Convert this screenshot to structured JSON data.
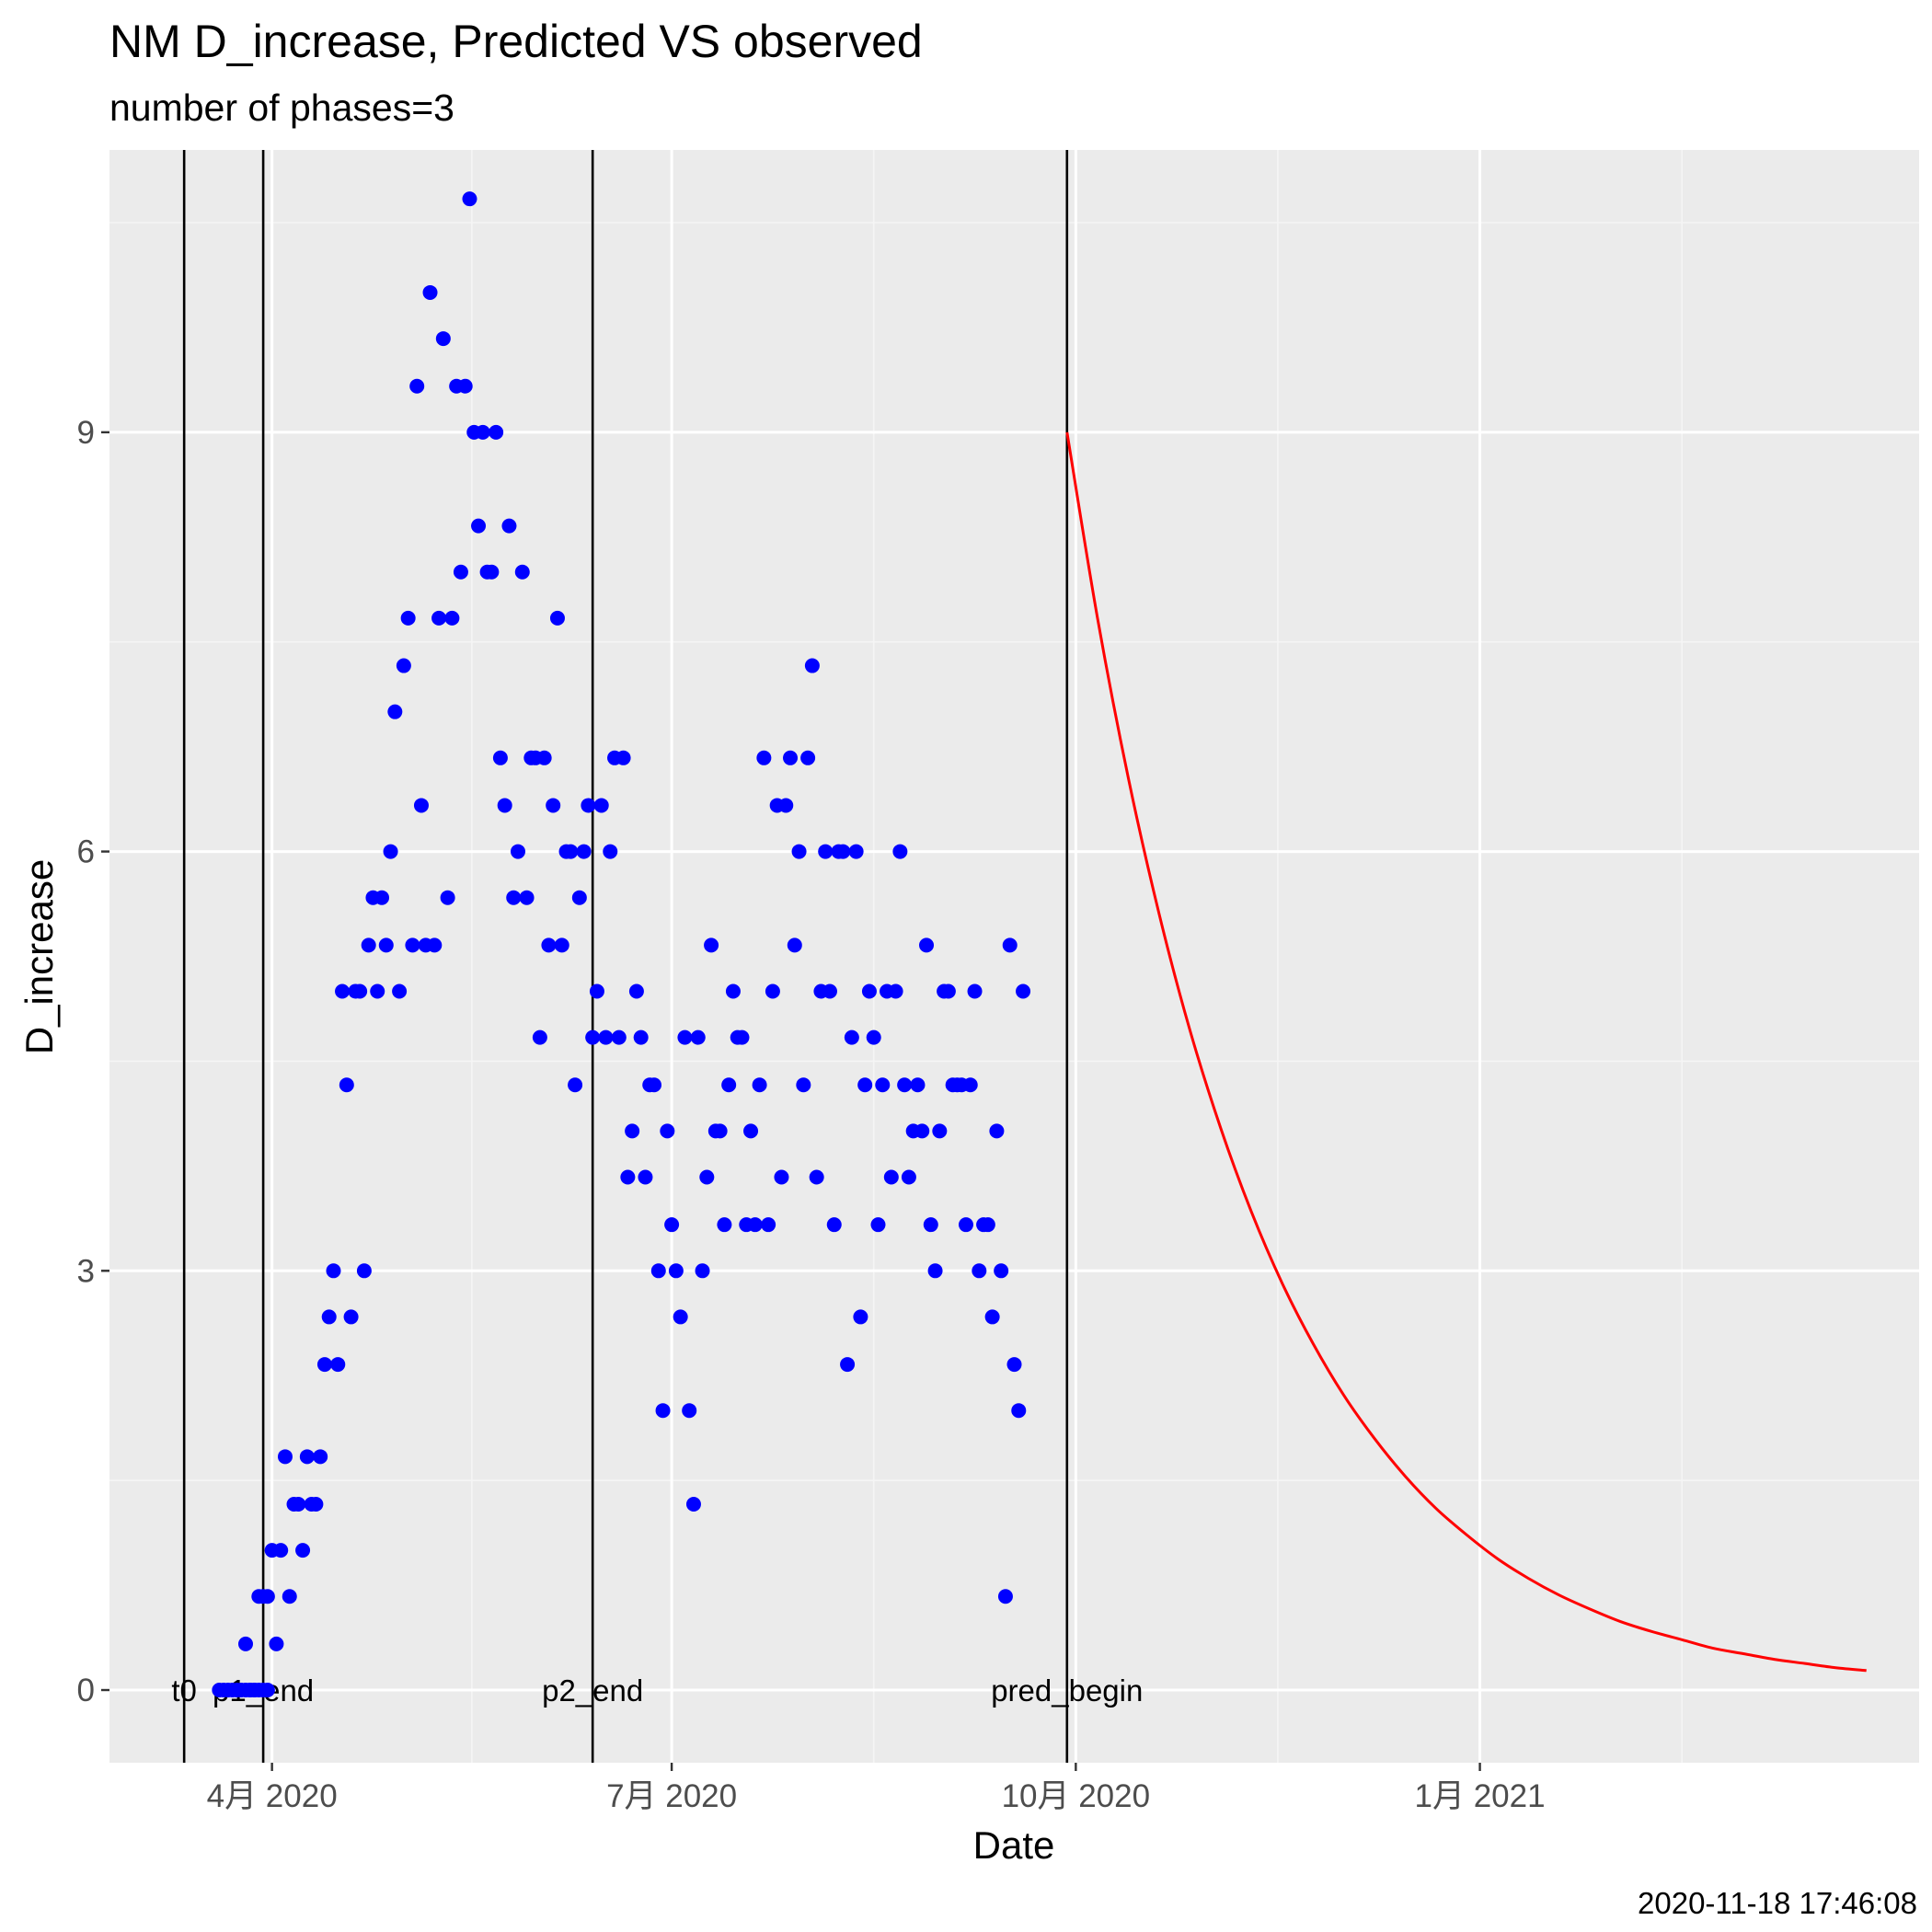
{
  "chart_data": {
    "type": "scatter",
    "title": "NM D_increase, Predicted VS observed",
    "subtitle": "number of phases=3",
    "caption": "2020-11-18 17:46:08",
    "xlabel": "Date",
    "ylabel": "D_increase",
    "x_ticks": [
      {
        "date": "2020-04-01",
        "label": "4月 2020"
      },
      {
        "date": "2020-07-01",
        "label": "7月 2020"
      },
      {
        "date": "2020-10-01",
        "label": "10月 2020"
      },
      {
        "date": "2021-01-01",
        "label": "1月 2021"
      }
    ],
    "y_ticks": [
      0,
      3,
      6,
      9
    ],
    "xlim": [
      "2020-02-24",
      "2021-04-11"
    ],
    "ylim": [
      -0.52,
      11.02
    ],
    "grid": true,
    "vlines": [
      {
        "date": "2020-03-12",
        "label": "t0"
      },
      {
        "date": "2020-03-30",
        "label": "p1_end"
      },
      {
        "date": "2020-06-13",
        "label": "p2_end"
      },
      {
        "date": "2020-09-29",
        "label": "pred_begin"
      }
    ],
    "series": [
      {
        "type": "scatter",
        "color": "#0000ff",
        "points": [
          [
            "2020-03-20",
            0
          ],
          [
            "2020-03-21",
            0
          ],
          [
            "2020-03-22",
            0
          ],
          [
            "2020-03-23",
            0
          ],
          [
            "2020-03-24",
            0
          ],
          [
            "2020-03-25",
            0
          ],
          [
            "2020-03-26",
            0
          ],
          [
            "2020-03-27",
            0
          ],
          [
            "2020-03-28",
            0
          ],
          [
            "2020-03-29",
            0
          ],
          [
            "2020-03-30",
            0
          ],
          [
            "2020-03-31",
            0
          ],
          [
            "2020-03-26",
            0.33
          ],
          [
            "2020-03-27",
            0
          ],
          [
            "2020-03-28",
            0
          ],
          [
            "2020-03-29",
            0.67
          ],
          [
            "2020-03-30",
            0.67
          ],
          [
            "2020-03-31",
            0.67
          ],
          [
            "2020-04-01",
            1
          ],
          [
            "2020-04-02",
            0.33
          ],
          [
            "2020-04-03",
            1
          ],
          [
            "2020-04-04",
            1.67
          ],
          [
            "2020-04-05",
            0.67
          ],
          [
            "2020-04-06",
            1.33
          ],
          [
            "2020-04-07",
            1.33
          ],
          [
            "2020-04-08",
            1
          ],
          [
            "2020-04-09",
            1.67
          ],
          [
            "2020-04-10",
            1.33
          ],
          [
            "2020-04-11",
            1.33
          ],
          [
            "2020-04-12",
            1.67
          ],
          [
            "2020-04-13",
            2.33
          ],
          [
            "2020-04-14",
            2.67
          ],
          [
            "2020-04-15",
            3
          ],
          [
            "2020-04-16",
            2.33
          ],
          [
            "2020-04-17",
            5
          ],
          [
            "2020-04-18",
            4.33
          ],
          [
            "2020-04-19",
            2.67
          ],
          [
            "2020-04-20",
            5
          ],
          [
            "2020-04-21",
            5
          ],
          [
            "2020-04-22",
            3
          ],
          [
            "2020-04-23",
            5.33
          ],
          [
            "2020-04-24",
            5.67
          ],
          [
            "2020-04-25",
            5
          ],
          [
            "2020-04-26",
            5.67
          ],
          [
            "2020-04-27",
            5.33
          ],
          [
            "2020-04-28",
            6
          ],
          [
            "2020-04-29",
            7
          ],
          [
            "2020-04-30",
            5
          ],
          [
            "2020-05-01",
            7.33
          ],
          [
            "2020-05-02",
            7.67
          ],
          [
            "2020-05-03",
            5.33
          ],
          [
            "2020-05-04",
            9.33
          ],
          [
            "2020-05-05",
            6.33
          ],
          [
            "2020-05-06",
            5.33
          ],
          [
            "2020-05-07",
            10
          ],
          [
            "2020-05-08",
            5.33
          ],
          [
            "2020-05-09",
            7.67
          ],
          [
            "2020-05-10",
            9.67
          ],
          [
            "2020-05-11",
            5.67
          ],
          [
            "2020-05-12",
            7.67
          ],
          [
            "2020-05-13",
            9.33
          ],
          [
            "2020-05-14",
            8
          ],
          [
            "2020-05-15",
            9.33
          ],
          [
            "2020-05-16",
            10.67
          ],
          [
            "2020-05-17",
            9
          ],
          [
            "2020-05-18",
            8.33
          ],
          [
            "2020-05-19",
            9
          ],
          [
            "2020-05-20",
            8
          ],
          [
            "2020-05-21",
            8
          ],
          [
            "2020-05-22",
            9
          ],
          [
            "2020-05-23",
            6.67
          ],
          [
            "2020-05-24",
            6.33
          ],
          [
            "2020-05-25",
            8.33
          ],
          [
            "2020-05-26",
            5.67
          ],
          [
            "2020-05-27",
            6
          ],
          [
            "2020-05-28",
            8
          ],
          [
            "2020-05-29",
            5.67
          ],
          [
            "2020-05-30",
            6.67
          ],
          [
            "2020-05-31",
            6.67
          ],
          [
            "2020-06-01",
            4.67
          ],
          [
            "2020-06-02",
            6.67
          ],
          [
            "2020-06-03",
            5.33
          ],
          [
            "2020-06-04",
            6.33
          ],
          [
            "2020-06-05",
            7.67
          ],
          [
            "2020-06-06",
            5.33
          ],
          [
            "2020-06-07",
            6
          ],
          [
            "2020-06-08",
            6
          ],
          [
            "2020-06-09",
            4.33
          ],
          [
            "2020-06-10",
            5.67
          ],
          [
            "2020-06-11",
            6
          ],
          [
            "2020-06-12",
            6.33
          ],
          [
            "2020-06-13",
            4.67
          ],
          [
            "2020-06-14",
            5
          ],
          [
            "2020-06-15",
            6.33
          ],
          [
            "2020-06-16",
            4.67
          ],
          [
            "2020-06-17",
            6
          ],
          [
            "2020-06-18",
            6.67
          ],
          [
            "2020-06-19",
            4.67
          ],
          [
            "2020-06-20",
            6.67
          ],
          [
            "2020-06-21",
            3.67
          ],
          [
            "2020-06-22",
            4
          ],
          [
            "2020-06-23",
            5
          ],
          [
            "2020-06-24",
            4.67
          ],
          [
            "2020-06-25",
            3.67
          ],
          [
            "2020-06-26",
            4.33
          ],
          [
            "2020-06-27",
            4.33
          ],
          [
            "2020-06-28",
            3
          ],
          [
            "2020-06-29",
            2
          ],
          [
            "2020-06-30",
            4
          ],
          [
            "2020-07-01",
            3.33
          ],
          [
            "2020-07-02",
            3
          ],
          [
            "2020-07-03",
            2.67
          ],
          [
            "2020-07-04",
            4.67
          ],
          [
            "2020-07-05",
            2
          ],
          [
            "2020-07-06",
            1.33
          ],
          [
            "2020-07-07",
            4.67
          ],
          [
            "2020-07-08",
            3
          ],
          [
            "2020-07-09",
            3.67
          ],
          [
            "2020-07-10",
            5.33
          ],
          [
            "2020-07-11",
            4
          ],
          [
            "2020-07-12",
            4
          ],
          [
            "2020-07-13",
            3.33
          ],
          [
            "2020-07-14",
            4.33
          ],
          [
            "2020-07-15",
            5
          ],
          [
            "2020-07-16",
            4.67
          ],
          [
            "2020-07-17",
            4.67
          ],
          [
            "2020-07-18",
            3.33
          ],
          [
            "2020-07-19",
            4
          ],
          [
            "2020-07-20",
            3.33
          ],
          [
            "2020-07-21",
            4.33
          ],
          [
            "2020-07-22",
            6.67
          ],
          [
            "2020-07-23",
            3.33
          ],
          [
            "2020-07-24",
            5
          ],
          [
            "2020-07-25",
            6.33
          ],
          [
            "2020-07-26",
            3.67
          ],
          [
            "2020-07-27",
            6.33
          ],
          [
            "2020-07-28",
            6.67
          ],
          [
            "2020-07-29",
            5.33
          ],
          [
            "2020-07-30",
            6
          ],
          [
            "2020-07-31",
            4.33
          ],
          [
            "2020-08-01",
            6.67
          ],
          [
            "2020-08-02",
            7.33
          ],
          [
            "2020-08-03",
            3.67
          ],
          [
            "2020-08-04",
            5
          ],
          [
            "2020-08-05",
            6
          ],
          [
            "2020-08-06",
            5
          ],
          [
            "2020-08-07",
            3.33
          ],
          [
            "2020-08-08",
            6
          ],
          [
            "2020-08-09",
            6
          ],
          [
            "2020-08-10",
            2.33
          ],
          [
            "2020-08-11",
            4.67
          ],
          [
            "2020-08-12",
            6
          ],
          [
            "2020-08-13",
            2.67
          ],
          [
            "2020-08-14",
            4.33
          ],
          [
            "2020-08-15",
            5
          ],
          [
            "2020-08-16",
            4.67
          ],
          [
            "2020-08-17",
            3.33
          ],
          [
            "2020-08-18",
            4.33
          ],
          [
            "2020-08-19",
            5
          ],
          [
            "2020-08-20",
            3.67
          ],
          [
            "2020-08-21",
            5
          ],
          [
            "2020-08-22",
            6
          ],
          [
            "2020-08-23",
            4.33
          ],
          [
            "2020-08-24",
            3.67
          ],
          [
            "2020-08-25",
            4
          ],
          [
            "2020-08-26",
            4.33
          ],
          [
            "2020-08-27",
            4
          ],
          [
            "2020-08-28",
            5.33
          ],
          [
            "2020-08-29",
            3.33
          ],
          [
            "2020-08-30",
            3
          ],
          [
            "2020-08-31",
            4
          ],
          [
            "2020-09-01",
            5
          ],
          [
            "2020-09-02",
            5
          ],
          [
            "2020-09-03",
            4.33
          ],
          [
            "2020-09-04",
            4.33
          ],
          [
            "2020-09-05",
            4.33
          ],
          [
            "2020-09-06",
            3.33
          ],
          [
            "2020-09-07",
            4.33
          ],
          [
            "2020-09-08",
            5
          ],
          [
            "2020-09-09",
            3
          ],
          [
            "2020-09-10",
            3.33
          ],
          [
            "2020-09-11",
            3.33
          ],
          [
            "2020-09-12",
            2.67
          ],
          [
            "2020-09-13",
            4
          ],
          [
            "2020-09-14",
            3
          ],
          [
            "2020-09-15",
            0.67
          ],
          [
            "2020-09-16",
            5.33
          ],
          [
            "2020-09-17",
            2.33
          ],
          [
            "2020-09-18",
            2
          ],
          [
            "2020-09-19",
            5
          ]
        ]
      },
      {
        "type": "line",
        "color": "#ff0000",
        "points": [
          [
            "2020-09-29",
            9
          ],
          [
            "2020-10-06",
            7.66
          ],
          [
            "2020-10-13",
            6.52
          ],
          [
            "2020-10-20",
            5.55
          ],
          [
            "2020-10-27",
            4.72
          ],
          [
            "2020-11-03",
            4.02
          ],
          [
            "2020-11-10",
            3.42
          ],
          [
            "2020-11-17",
            2.91
          ],
          [
            "2020-11-24",
            2.48
          ],
          [
            "2020-12-01",
            2.11
          ],
          [
            "2020-12-08",
            1.8
          ],
          [
            "2020-12-15",
            1.53
          ],
          [
            "2020-12-22",
            1.3
          ],
          [
            "2020-12-29",
            1.11
          ],
          [
            "2021-01-05",
            0.94
          ],
          [
            "2021-01-12",
            0.8
          ],
          [
            "2021-01-19",
            0.68
          ],
          [
            "2021-01-26",
            0.58
          ],
          [
            "2021-02-02",
            0.49
          ],
          [
            "2021-02-09",
            0.42
          ],
          [
            "2021-02-16",
            0.36
          ],
          [
            "2021-02-23",
            0.3
          ],
          [
            "2021-03-02",
            0.26
          ],
          [
            "2021-03-09",
            0.22
          ],
          [
            "2021-03-16",
            0.19
          ],
          [
            "2021-03-23",
            0.16
          ],
          [
            "2021-03-30",
            0.14
          ]
        ]
      }
    ]
  }
}
